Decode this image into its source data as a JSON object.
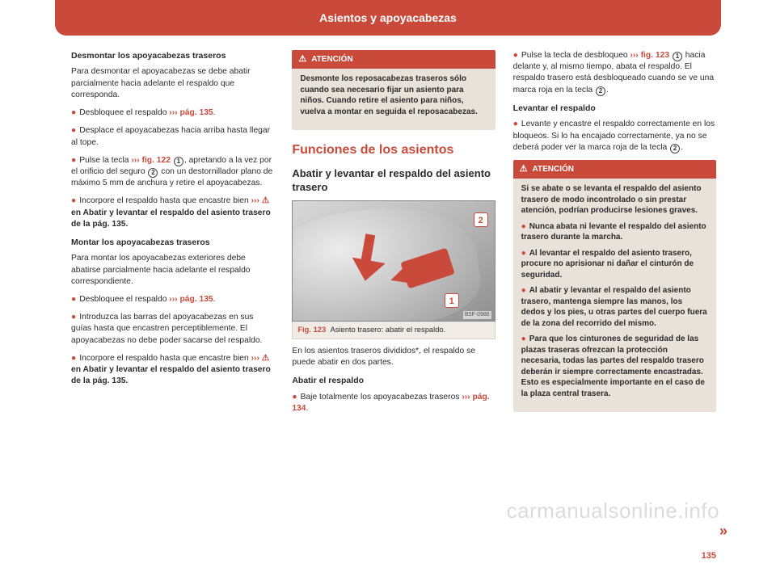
{
  "header": {
    "title": "Asientos y apoyacabezas"
  },
  "page_number": "135",
  "continuation_mark": "»",
  "watermark": "carmanualsonline.info",
  "col1": {
    "h1": "Desmontar los apoyacabezas traseros",
    "p1": "Para desmontar el apoyacabezas se debe abatir parcialmente hacia adelante el respaldo que corresponda.",
    "b1_a": "Desbloquee el respaldo ",
    "b1_ref": "››› pág. 135",
    "b1_c": ".",
    "b2": "Desplace el apoyacabezas hacia arriba hasta llegar al tope.",
    "b3_a": "Pulse la tecla ",
    "b3_ref": "››› fig. 122",
    "b3_c": ", apretando a la vez por el orificio del seguro ",
    "b3_d": " con un destornillador plano de máximo 5 mm de anchura y retire el apoyacabezas.",
    "b4_a": "Incorpore el respaldo hasta que encastre bien ",
    "b4_ref": "›››",
    "b4_b": " en Abatir y levantar el respaldo del asiento trasero de la pág. 135.",
    "h2": "Montar los apoyacabezas traseros",
    "p2": "Para montar los apoyacabezas exteriores debe abatirse parcialmente hacia adelante el respaldo correspondiente.",
    "b5_a": "Desbloquee el respaldo ",
    "b5_ref": "››› pág. 135",
    "b5_c": ".",
    "b6": "Introduzca las barras del apoyacabezas en sus guías hasta que encastren perceptiblemente. El apoyacabezas no debe poder sacarse del respaldo.",
    "b7_a": "Incorpore el respaldo hasta que encastre bien ",
    "b7_ref": "›››",
    "b7_b": " en Abatir y levantar el respaldo del asiento trasero de la pág. 135."
  },
  "col2": {
    "alert_label": "ATENCIÓN",
    "alert_body": "Desmonte los reposacabezas traseros sólo cuando sea necesario fijar un asiento para niños. Cuando retire el asiento para niños, vuelva a montar en seguida el reposacabezas.",
    "section_title": "Funciones de los asientos",
    "sub_title": "Abatir y levantar el respaldo del asiento trasero",
    "fig_label": "Fig. 123",
    "fig_caption": "Asiento trasero: abatir el respaldo.",
    "fig_code": "B5F-0986",
    "fig_num1": "1",
    "fig_num2": "2",
    "p1": "En los asientos traseros divididos*, el respaldo se puede abatir en dos partes.",
    "h1": "Abatir el respaldo",
    "b1_a": "Baje totalmente los apoyacabezas traseros ",
    "b1_ref": "››› pág. 134",
    "b1_c": "."
  },
  "col3": {
    "b1_a": "Pulse la tecla de desbloqueo ",
    "b1_ref": "››› fig. 123",
    "b1_c": " hacia delante y, al mismo tiempo, abata el respaldo. El respaldo trasero está desbloqueado cuando se ve una marca roja en la tecla ",
    "b1_d": ".",
    "h2": "Levantar el respaldo",
    "b2_a": "Levante y encastre el respaldo correctamente en los bloqueos. Si lo ha encajado correctamente, ya no se deberá poder ver la marca roja de la tecla ",
    "b2_b": ".",
    "alert_label": "ATENCIÓN",
    "alert_p1": "Si se abate o se levanta el respaldo del asiento trasero de modo incontrolado o sin prestar atención, podrían producirse lesiones graves.",
    "alert_b1": "Nunca abata ni levante el respaldo del asiento trasero durante la marcha.",
    "alert_b2": "Al levantar el respaldo del asiento trasero, procure no aprisionar ni dañar el cinturón de seguridad.",
    "alert_b3": "Al abatir y levantar el respaldo del asiento trasero, mantenga siempre las manos, los dedos y los pies, u otras partes del cuerpo fuera de la zona del recorrido del mismo.",
    "alert_b4": "Para que los cinturones de seguridad de las plazas traseras ofrezcan la protección necesaria, todas las partes del respaldo trasero deberán ir siempre correctamente encastradas. Esto es especialmente importante en el caso de la plaza central trasera."
  },
  "circles": {
    "one": "1",
    "two": "2"
  }
}
